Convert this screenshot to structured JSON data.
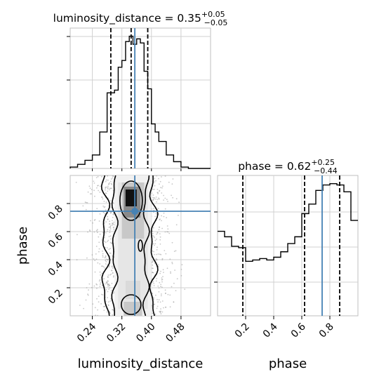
{
  "chart_data": {
    "type": "corner",
    "parameters": [
      "luminosity_distance",
      "phase"
    ],
    "truth": {
      "luminosity_distance": 0.355,
      "phase": 0.745
    },
    "marginals": [
      {
        "name": "luminosity_distance",
        "title_prefix": "luminosity_distance = 0.35",
        "title_sup": "+0.05",
        "title_sub": "−0.05",
        "xlim": [
          0.18,
          0.56
        ],
        "quantiles": [
          0.29,
          0.345,
          0.39
        ],
        "bin_edges": [
          0.18,
          0.2,
          0.22,
          0.24,
          0.26,
          0.28,
          0.3,
          0.31,
          0.32,
          0.33,
          0.34,
          0.35,
          0.36,
          0.37,
          0.38,
          0.39,
          0.4,
          0.41,
          0.42,
          0.44,
          0.46,
          0.48,
          0.5,
          0.56
        ],
        "counts": [
          0.01,
          0.03,
          0.06,
          0.1,
          0.27,
          0.56,
          0.58,
          0.75,
          0.8,
          0.94,
          0.98,
          0.92,
          0.96,
          0.93,
          0.72,
          0.59,
          0.33,
          0.27,
          0.2,
          0.1,
          0.05,
          0.01,
          0.0
        ]
      },
      {
        "name": "phase",
        "title_prefix": "phase = 0.62",
        "title_sup": "+0.25",
        "title_sub": "−0.44",
        "xlim": [
          0.0,
          1.0
        ],
        "quantiles": [
          0.18,
          0.62,
          0.87
        ],
        "bin_edges": [
          0.0,
          0.05,
          0.1,
          0.15,
          0.2,
          0.25,
          0.3,
          0.35,
          0.4,
          0.45,
          0.5,
          0.55,
          0.6,
          0.65,
          0.7,
          0.75,
          0.8,
          0.85,
          0.9,
          0.95,
          1.0
        ],
        "counts": [
          0.62,
          0.58,
          0.51,
          0.5,
          0.4,
          0.41,
          0.42,
          0.41,
          0.43,
          0.47,
          0.53,
          0.58,
          0.75,
          0.82,
          0.92,
          0.96,
          0.97,
          0.96,
          0.91,
          0.7
        ]
      }
    ],
    "joint": {
      "xlim": [
        0.18,
        0.56
      ],
      "ylim": [
        0.0,
        1.0
      ],
      "x_ticks": [
        "0.24",
        "0.32",
        "0.40",
        "0.48"
      ],
      "x_tick_values": [
        0.24,
        0.32,
        0.4,
        0.48
      ],
      "y_ticks": [
        "0.2",
        "0.4",
        "0.6",
        "0.8"
      ],
      "y_tick_values": [
        0.2,
        0.4,
        0.6,
        0.8
      ]
    },
    "phase_x_ticks": [
      "0.2",
      "0.4",
      "0.6",
      "0.8"
    ],
    "phase_x_tick_values": [
      0.2,
      0.4,
      0.6,
      0.8
    ],
    "xlabel_left": "luminosity_distance",
    "xlabel_right": "phase",
    "ylabel_joint": "phase",
    "truth_color": "#4682b4"
  }
}
